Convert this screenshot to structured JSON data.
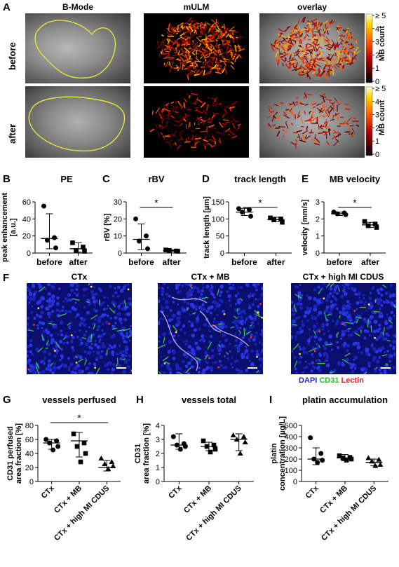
{
  "panelA": {
    "letter": "A",
    "columns": [
      "B-Mode",
      "mULM",
      "overlay"
    ],
    "rows": [
      "before",
      "after"
    ],
    "colorbar": {
      "label": "MB count",
      "ticks": [
        "≥ 5",
        "4",
        "3",
        "2",
        "1",
        "0"
      ]
    }
  },
  "plots": [
    {
      "id": "B",
      "letter": "B",
      "title": "PE",
      "ylabel_lines": [
        "peak enhancement",
        "[a.u.]"
      ],
      "categories": [
        "before",
        "after"
      ],
      "yticks": [
        0,
        20,
        40,
        60
      ],
      "ylim": [
        0,
        60
      ],
      "points": [
        [
          55,
          18,
          15,
          6
        ],
        [
          12,
          7,
          3,
          2
        ]
      ],
      "mean": [
        17,
        5
      ],
      "err": [
        [
          5,
          46
        ],
        [
          1,
          12
        ]
      ],
      "sig": null
    },
    {
      "id": "C",
      "letter": "C",
      "title": "rBV",
      "ylabel_lines": [
        "rBV [%]"
      ],
      "categories": [
        "before",
        "after"
      ],
      "yticks": [
        0,
        10,
        20,
        30
      ],
      "ylim": [
        0,
        30
      ],
      "points": [
        [
          20,
          10,
          7,
          2.5
        ],
        [
          1.8,
          1.2,
          1.5,
          1.0
        ]
      ],
      "mean": [
        8,
        1.4
      ],
      "err": [
        [
          2,
          17
        ],
        [
          0.8,
          2
        ]
      ],
      "sig": "*"
    },
    {
      "id": "D",
      "letter": "D",
      "title": "track length",
      "ylabel_lines": [
        "track length [µm]"
      ],
      "categories": [
        "before",
        "after"
      ],
      "yticks": [
        0,
        50,
        100,
        150
      ],
      "ylim": [
        0,
        150
      ],
      "points": [
        [
          130,
          127,
          120,
          108
        ],
        [
          103,
          100,
          97,
          90
        ]
      ],
      "mean": [
        120,
        98
      ],
      "err": [
        [
          110,
          131
        ],
        [
          92,
          105
        ]
      ],
      "sig": "*"
    },
    {
      "id": "E",
      "letter": "E",
      "title": "MB velocity",
      "ylabel_lines": [
        "velocity [mm/s]"
      ],
      "categories": [
        "before",
        "after"
      ],
      "yticks": [
        0,
        1,
        2,
        3
      ],
      "ylim": [
        0,
        3
      ],
      "points": [
        [
          2.4,
          2.35,
          2.3,
          2.25
        ],
        [
          1.85,
          1.7,
          1.6,
          1.5
        ]
      ],
      "mean": [
        2.3,
        1.65
      ],
      "err": [
        [
          2.2,
          2.4
        ],
        [
          1.5,
          1.8
        ]
      ],
      "sig": "*"
    },
    {
      "id": "G",
      "letter": "G",
      "title": "vessels perfused",
      "ylabel_lines": [
        "CD31 perfused",
        "area fraction [%]"
      ],
      "categories": [
        "CTx",
        "CTx + MB",
        "CTx + high MI CDUS"
      ],
      "yticks": [
        0,
        20,
        40,
        60,
        80
      ],
      "ylim": [
        0,
        80
      ],
      "points": [
        [
          60,
          58,
          55,
          50,
          45
        ],
        [
          68,
          55,
          50,
          40,
          28
        ],
        [
          33,
          28,
          25,
          22,
          18
        ]
      ],
      "mean": [
        55,
        58,
        20
      ],
      "err": [
        [
          46,
          60
        ],
        [
          35,
          70
        ],
        [
          15,
          30
        ]
      ],
      "sig": "*"
    },
    {
      "id": "H",
      "letter": "H",
      "title": "vessels total",
      "ylabel_lines": [
        "CD31",
        "area fraction [%]"
      ],
      "categories": [
        "CTx",
        "CTx + MB",
        "CTx + high MI CDUS"
      ],
      "yticks": [
        0,
        1,
        2,
        3,
        4
      ],
      "ylim": [
        0,
        4
      ],
      "points": [
        [
          3.2,
          2.7,
          2.6,
          2.5,
          2.3
        ],
        [
          2.9,
          2.6,
          2.5,
          2.3,
          2.1
        ],
        [
          3.3,
          3.2,
          3.0,
          2.8,
          2.0
        ]
      ],
      "mean": [
        2.6,
        2.5,
        3.0
      ],
      "err": [
        [
          2.3,
          3.4
        ],
        [
          2.2,
          2.8
        ],
        [
          2.2,
          3.4
        ]
      ],
      "sig": null
    },
    {
      "id": "I",
      "letter": "I",
      "title": "platin accumulation",
      "ylabel_lines": [
        "platin",
        "concentration [µg/L]"
      ],
      "categories": [
        "CTx",
        "CTx + MB",
        "CTx + high MI CDUS"
      ],
      "yticks": [
        0,
        100,
        200,
        300,
        400,
        500
      ],
      "ylim": [
        0,
        500
      ],
      "points": [
        [
          390,
          250,
          200,
          190,
          170
        ],
        [
          230,
          215,
          210,
          200,
          190
        ],
        [
          210,
          195,
          180,
          150,
          140
        ]
      ],
      "mean": [
        200,
        210,
        170
      ],
      "err": [
        [
          150,
          300
        ],
        [
          185,
          240
        ],
        [
          140,
          200
        ]
      ],
      "sig": null
    }
  ],
  "panelF": {
    "letter": "F",
    "titles": [
      "CTx",
      "CTx + MB",
      "CTx + high MI CDUS"
    ],
    "legend": {
      "dapi": "DAPI",
      "cd31": "CD31",
      "lectin": "Lectin"
    },
    "colors": {
      "dapi": "#1f26c8",
      "cd31": "#2db82d",
      "lectin": "#e0202a"
    }
  }
}
